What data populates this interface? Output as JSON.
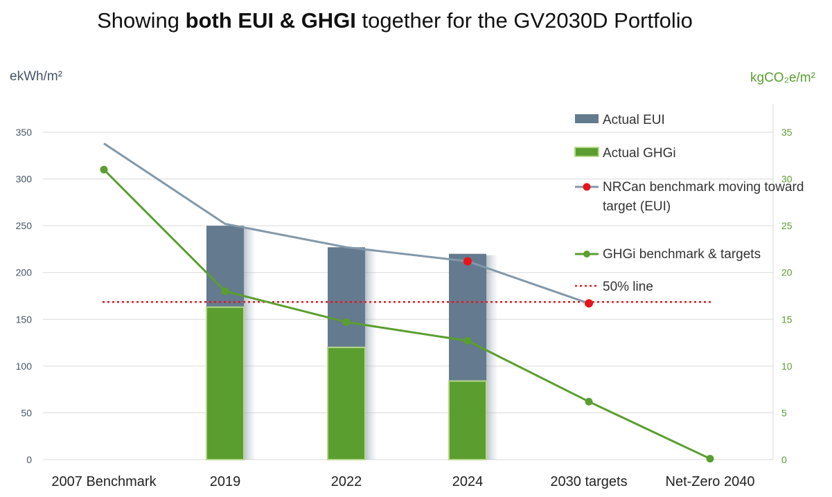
{
  "title": {
    "prefix": "Showing ",
    "bold": "both EUI & GHGI",
    "suffix": " together for the GV2030D Portfolio"
  },
  "units": {
    "left": "ekWh/m²",
    "right": "kgCO₂e/m²"
  },
  "colors": {
    "eui_bar": "#647a8e",
    "ghg_bar": "#5a9e2f",
    "eui_line": "#8298aa",
    "ghg_line": "#5a9e2f",
    "red": "#e8141c",
    "axis_text_left": "#44546a",
    "axis_text_right": "#5a9e2f",
    "grid": "#d9d9d9"
  },
  "chart_data": {
    "type": "bar",
    "categories": [
      "2007 Benchmark",
      "2019",
      "2022",
      "2024",
      "2030 targets",
      "Net-Zero 2040"
    ],
    "y_left": {
      "label": "ekWh/m²",
      "range": [
        0,
        350
      ],
      "ticks": [
        0,
        50,
        100,
        150,
        200,
        250,
        300,
        350
      ]
    },
    "y_right": {
      "label": "kgCO₂e/m²",
      "range": [
        0,
        35
      ],
      "ticks": [
        0,
        5,
        10,
        15,
        20,
        25,
        30,
        35
      ]
    },
    "series": [
      {
        "name": "Actual EUI",
        "type": "bar",
        "axis": "left",
        "values": [
          null,
          250,
          227,
          220,
          null,
          null
        ]
      },
      {
        "name": "Actual GHGi",
        "type": "bar",
        "axis": "left",
        "values": [
          null,
          163,
          120,
          84,
          null,
          null
        ]
      },
      {
        "name": "NRCan benchmark moving toward target (EUI)",
        "type": "line",
        "axis": "left",
        "values": [
          338,
          252,
          227,
          212,
          167,
          null
        ],
        "red_markers": [
          3,
          4
        ]
      },
      {
        "name": "GHGi benchmark & targets",
        "type": "line",
        "axis": "right",
        "values": [
          31,
          18,
          14.7,
          12.7,
          6.2,
          0.1
        ]
      },
      {
        "name": "50% line",
        "type": "reference",
        "axis": "left",
        "value": 168.5
      }
    ],
    "legend": [
      {
        "label": "Actual EUI",
        "kind": "bar-eui"
      },
      {
        "label": "Actual GHGi",
        "kind": "bar-ghg"
      },
      {
        "label": "NRCan benchmark moving toward target (EUI)",
        "kind": "line-eui"
      },
      {
        "label": "GHGi benchmark & targets",
        "kind": "line-ghg"
      },
      {
        "label": "50% line",
        "kind": "dotted-red"
      }
    ],
    "legend_placement": "right"
  }
}
